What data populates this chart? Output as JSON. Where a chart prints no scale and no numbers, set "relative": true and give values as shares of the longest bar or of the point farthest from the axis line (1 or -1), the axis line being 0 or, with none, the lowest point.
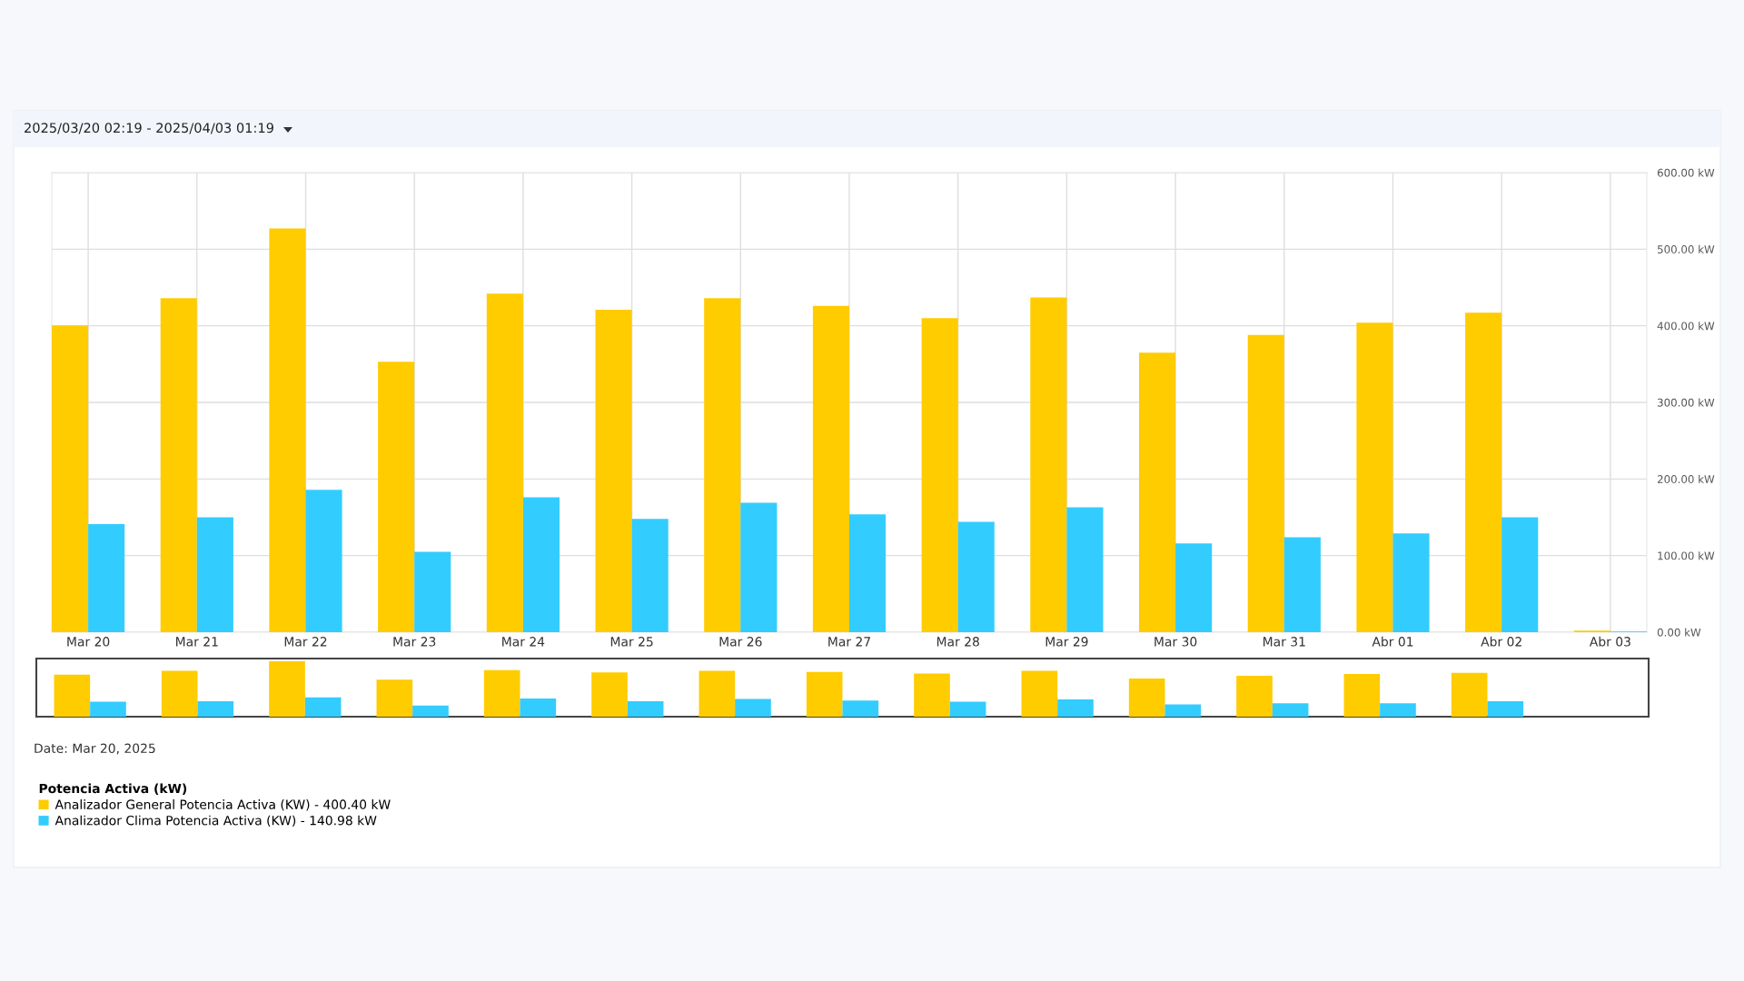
{
  "chart_data": [
    {
      "type": "bar",
      "title": "2025/03/20 02:19 - 2025/04/03 01:19",
      "categories": [
        "Mar 20",
        "Mar 21",
        "Mar 22",
        "Mar 23",
        "Mar 24",
        "Mar 25",
        "Mar 26",
        "Mar 27",
        "Mar 28",
        "Mar 29",
        "Mar 30",
        "Mar 31",
        "Abr 01",
        "Abr 02",
        "Abr 03"
      ],
      "series": [
        {
          "name": "Analizador General Potencia Activa (KW) - 400.40 kW",
          "color": "#ffcc00",
          "values": [
            400.4,
            436,
            527,
            353,
            442,
            421,
            436,
            426,
            410,
            437,
            365,
            388,
            404,
            417,
            2
          ]
        },
        {
          "name": "Analizador Clima Potencia Activa (KW) - 140.98 kW",
          "color": "#33ccff",
          "values": [
            140.98,
            150,
            186,
            105,
            176,
            148,
            169,
            154,
            144,
            163,
            116,
            124,
            129,
            150,
            1
          ]
        }
      ],
      "ylim": [
        0,
        600
      ],
      "yticks": [
        {
          "value": 0,
          "label": "0.00 kW"
        },
        {
          "value": 100,
          "label": "100.00 kW"
        },
        {
          "value": 200,
          "label": "200.00 kW"
        },
        {
          "value": 300,
          "label": "300.00 kW"
        },
        {
          "value": 400,
          "label": "400.00 kW"
        },
        {
          "value": 500,
          "label": "500.00 kW"
        },
        {
          "value": 600,
          "label": "600.00 kW"
        }
      ],
      "grid": true,
      "legend": "bottom left",
      "legend_title": "Potencia Activa (kW)",
      "annotations": [
        "Date: Mar 20, 2025"
      ]
    },
    {
      "type": "bar",
      "relative": true,
      "categories": [
        null,
        null,
        null,
        null,
        null,
        null,
        null,
        null,
        null,
        null,
        null,
        null,
        null,
        null,
        null
      ],
      "series": [
        {
          "color": "#ffcc00",
          "values": [
            0.76,
            0.83,
            1,
            0.67,
            0.84,
            0.8,
            0.83,
            0.81,
            0.78,
            0.83,
            0.69,
            0.74,
            0.77,
            0.79,
            0
          ]
        },
        {
          "color": "#33ccff",
          "values": [
            0.27,
            0.28,
            0.35,
            0.2,
            0.33,
            0.28,
            0.32,
            0.29,
            0.27,
            0.31,
            0.22,
            0.24,
            0.24,
            0.28,
            0
          ]
        }
      ]
    }
  ]
}
